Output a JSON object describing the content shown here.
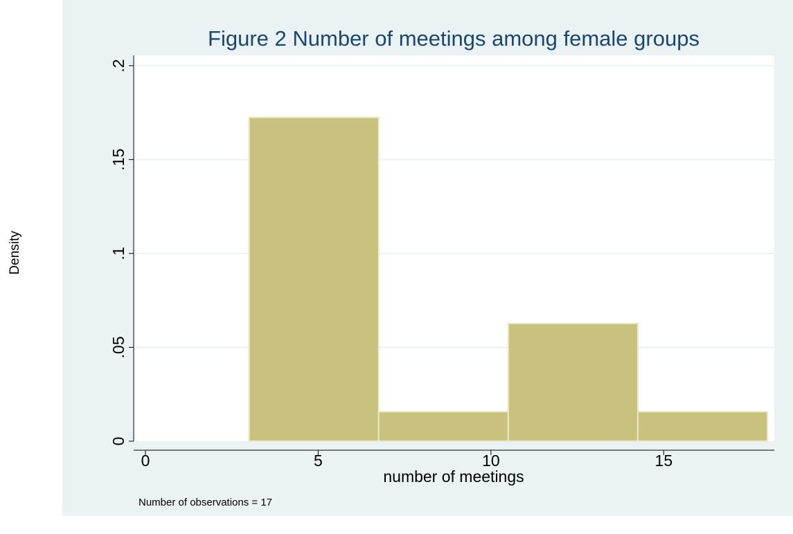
{
  "chart_data": {
    "type": "histogram",
    "title": "Figure 2 Number of meetings among female groups",
    "x_label": "number of meetings",
    "y_label": "Density",
    "note": "Number of observations = 17",
    "bins": [
      3,
      6.75,
      10.5,
      14.25,
      18
    ],
    "values": [
      0.1725,
      0.0157,
      0.0627,
      0.0157
    ],
    "color": "#c9c27e",
    "edge_color": "#ebe8c6",
    "xlim": [
      -0.34,
      18.2
    ],
    "xticks": [
      0,
      5,
      10,
      15
    ],
    "ylim": [
      0,
      0.2055
    ],
    "yticks": [
      0,
      {
        "value": 0.05,
        "label": ".05"
      },
      {
        "value": 0.1,
        "label": ".1"
      },
      {
        "value": 0.15,
        "label": ".15"
      },
      {
        "value": 0.2,
        "label": ".2"
      }
    ],
    "grid": true
  }
}
